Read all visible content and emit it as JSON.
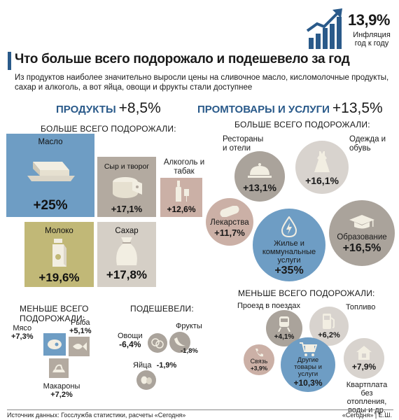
{
  "header": {
    "inflation_value": "13,9%",
    "inflation_label": "Инфляция год к году",
    "title": "Что больше всего подорожало и подешевело за год",
    "subtitle": "Из продуктов наиболее значительно выросли цены на сливочное масло, кисломолочные продукты, сахар и алкоголь, а вот яйца, овощи и фрукты стали доступнее"
  },
  "products": {
    "title": "ПРОДУКТЫ",
    "total": "+8,5%",
    "up_caption": "БОЛЬШЕ ВСЕГО ПОДОРОЖАЛИ:",
    "items": [
      {
        "name": "Масло",
        "pct": "+25%",
        "icon": "butter-icon"
      },
      {
        "name": "Сыр и творог",
        "pct": "+17,1%",
        "icon": "cheese-icon"
      },
      {
        "name": "Алкоголь и табак",
        "pct": "+12,6%",
        "icon": "bottle-icon"
      },
      {
        "name": "Молоко",
        "pct": "+19,6%",
        "icon": "milk-icon"
      },
      {
        "name": "Сахар",
        "pct": "+17,8%",
        "icon": "sugar-bag-icon"
      }
    ],
    "least_caption": "МЕНЬШЕ ВСЕГО ПОДОРОЖАЛИ:",
    "least": [
      {
        "name": "Мясо",
        "pct": "+7,3%",
        "icon": "meat-icon"
      },
      {
        "name": "Рыба",
        "pct": "+5,1%",
        "icon": "fish-icon"
      },
      {
        "name": "Макароны",
        "pct": "+7,2%",
        "icon": "pasta-icon"
      }
    ],
    "cheaper_caption": "ПОДЕШЕВЕЛИ:",
    "cheaper": [
      {
        "name": "Овощи",
        "pct": "-6,4%",
        "icon": "vegetables-icon"
      },
      {
        "name": "Фрукты",
        "pct": "-1,8%",
        "icon": "banana-icon"
      },
      {
        "name": "Яйца",
        "pct": "-1,9%",
        "icon": "eggs-icon"
      }
    ]
  },
  "services": {
    "title": "ПРОМТОВАРЫ И УСЛУГИ",
    "total": "+13,5%",
    "up_caption": "БОЛЬШЕ ВСЕГО ПОДОРОЖАЛИ:",
    "items": [
      {
        "name": "Рестораны и отели",
        "pct": "+13,1%",
        "icon": "cloche-icon"
      },
      {
        "name": "Одежда и обувь",
        "pct": "+16,1%",
        "icon": "dress-icon"
      },
      {
        "name": "Лекарства",
        "pct": "+11,7%",
        "icon": "pill-icon"
      },
      {
        "name": "Жилье и коммунальные услуги",
        "pct": "+35%",
        "icon": "water-drop-icon"
      },
      {
        "name": "Образование",
        "pct": "+16,5%",
        "icon": "graduation-cap-icon"
      }
    ],
    "least_caption": "МЕНЬШЕ ВСЕГО ПОДОРОЖАЛИ:",
    "least": [
      {
        "name": "Проезд в поездах",
        "pct": "+4,1%",
        "icon": "train-icon"
      },
      {
        "name": "Топливо",
        "pct": "+6,2%",
        "icon": "fuel-pump-icon"
      },
      {
        "name": "Связь",
        "pct": "+3,9%",
        "icon": "phone-icon"
      },
      {
        "name": "Другие товары и услуги",
        "pct": "+10,3%",
        "icon": "cart-icon"
      },
      {
        "name": "Квартплата без отопления, воды и др.",
        "pct": "+7,9%",
        "icon": "house-icon"
      }
    ]
  },
  "footer": {
    "source": "Источник данных: Госслужба статистики, расчеты «Сегодня»",
    "credit": "«Сегодня» | Е.Ш."
  },
  "colors": {
    "blue": "#6e9dc4",
    "olive": "#c1b877",
    "taupe": "#b3aaa0",
    "mauve": "#cbb0a6",
    "gray_circle": "#aaa39b",
    "light_circle": "#d8d3ce",
    "title_blue": "#2a5a8a"
  }
}
